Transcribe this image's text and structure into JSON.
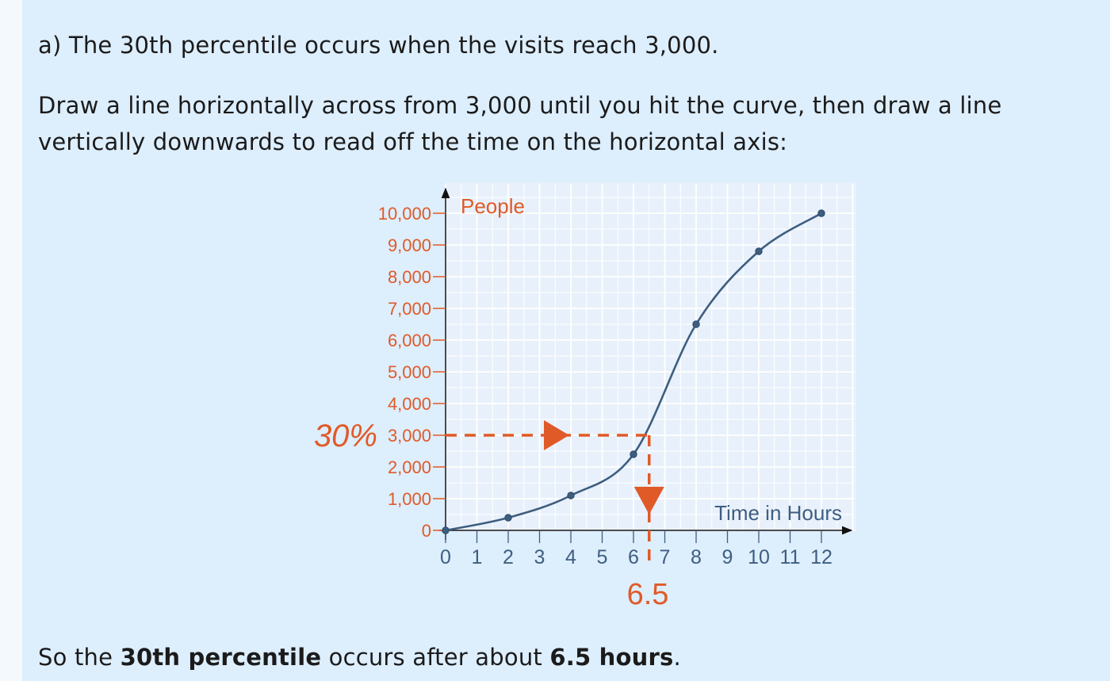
{
  "text": {
    "line1": "a) The 30th percentile occurs when the visits reach 3,000.",
    "line2": "Draw a line horizontally across from 3,000 until you hit the curve, then draw a line vertically downwards to read off the time on the horizontal axis:",
    "line3_pre": "So the ",
    "line3_b1": "30th percentile",
    "line3_mid": " occurs after about ",
    "line3_b2": "6.5 hours",
    "line3_post": "."
  },
  "colors": {
    "accent": "#e05a28",
    "curve": "#3e5e80",
    "panel": "#ddeefd"
  },
  "chart_data": {
    "type": "line",
    "ylabel": "People",
    "xlabel": "Time in Hours",
    "xlim": [
      0,
      13
    ],
    "ylim": [
      0,
      10000
    ],
    "x_ticks": [
      0,
      1,
      2,
      3,
      4,
      5,
      6,
      7,
      8,
      9,
      10,
      11,
      12
    ],
    "y_ticks": [
      0,
      1000,
      2000,
      3000,
      4000,
      5000,
      6000,
      7000,
      8000,
      9000,
      10000
    ],
    "y_tick_labels": [
      "0",
      "1,000",
      "2,000",
      "3,000",
      "4,000",
      "5,000",
      "6,000",
      "7,000",
      "8,000",
      "9,000",
      "10,000"
    ],
    "points": [
      {
        "x": 0,
        "y": 0
      },
      {
        "x": 2,
        "y": 400
      },
      {
        "x": 4,
        "y": 1100
      },
      {
        "x": 6,
        "y": 2400
      },
      {
        "x": 8,
        "y": 6500
      },
      {
        "x": 10,
        "y": 8800
      },
      {
        "x": 12,
        "y": 10000
      }
    ],
    "grid": true,
    "annotation": {
      "percentile_label": "30%",
      "y_value": 3000,
      "x_value": 6.5,
      "x_label": "6.5"
    }
  }
}
